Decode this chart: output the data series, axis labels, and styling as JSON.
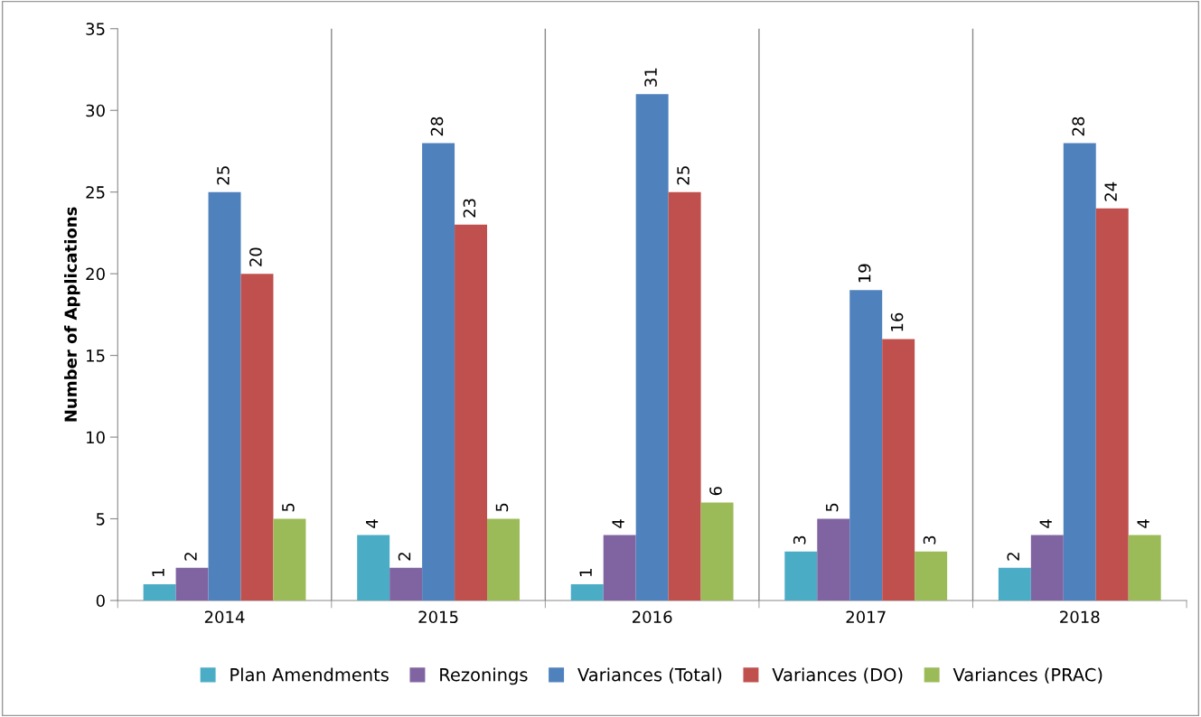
{
  "chart_data": {
    "type": "bar",
    "ylabel": "Number of Applications",
    "categories": [
      "2014",
      "2015",
      "2016",
      "2017",
      "2018"
    ],
    "series": [
      {
        "name": "Plan Amendments",
        "color": "#4bacc6",
        "values": [
          1,
          4,
          1,
          3,
          2
        ]
      },
      {
        "name": "Rezonings",
        "color": "#8064a2",
        "values": [
          2,
          2,
          4,
          5,
          4
        ]
      },
      {
        "name": "Variances (Total)",
        "color": "#4f81bd",
        "values": [
          25,
          28,
          31,
          19,
          28
        ]
      },
      {
        "name": "Variances (DO)",
        "color": "#c0504d",
        "values": [
          20,
          23,
          25,
          16,
          24
        ]
      },
      {
        "name": "Variances (PRAC)",
        "color": "#9bbb59",
        "values": [
          5,
          5,
          6,
          3,
          4
        ]
      }
    ],
    "ylim": [
      0,
      35
    ],
    "yticks": [
      0,
      5,
      10,
      15,
      20,
      25,
      30,
      35
    ],
    "grid": "x",
    "legend": "bottom",
    "data_labels": true
  }
}
